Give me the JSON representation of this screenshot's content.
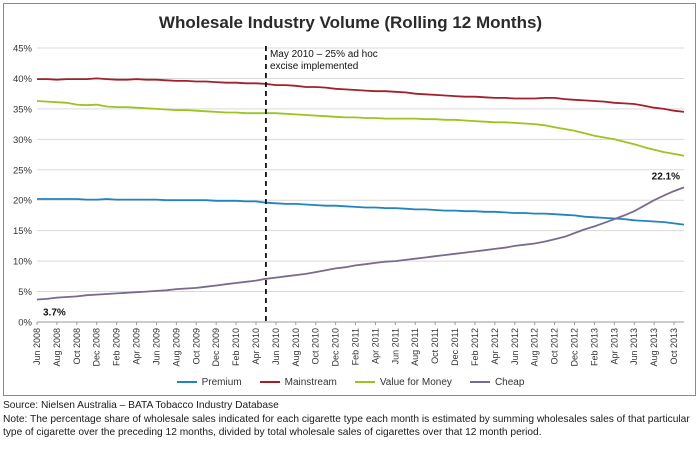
{
  "chart_data": {
    "type": "line",
    "title": "Wholesale Industry Volume (Rolling 12 Months)",
    "xlabel": "",
    "ylabel": "",
    "ylim": [
      0,
      45
    ],
    "y_ticks": [
      "0%",
      "5%",
      "10%",
      "15%",
      "20%",
      "25%",
      "30%",
      "35%",
      "40%",
      "45%"
    ],
    "y_unit": "%",
    "grid": "horizontal",
    "legend_position": "bottom",
    "months": [
      "2008-06",
      "2008-07",
      "2008-08",
      "2008-09",
      "2008-10",
      "2008-11",
      "2008-12",
      "2009-01",
      "2009-02",
      "2009-03",
      "2009-04",
      "2009-05",
      "2009-06",
      "2009-07",
      "2009-08",
      "2009-09",
      "2009-10",
      "2009-11",
      "2009-12",
      "2010-01",
      "2010-02",
      "2010-03",
      "2010-04",
      "2010-05",
      "2010-06",
      "2010-07",
      "2010-08",
      "2010-09",
      "2010-10",
      "2010-11",
      "2010-12",
      "2011-01",
      "2011-02",
      "2011-03",
      "2011-04",
      "2011-05",
      "2011-06",
      "2011-07",
      "2011-08",
      "2011-09",
      "2011-10",
      "2011-11",
      "2011-12",
      "2012-01",
      "2012-02",
      "2012-03",
      "2012-04",
      "2012-05",
      "2012-06",
      "2012-07",
      "2012-08",
      "2012-09",
      "2012-10",
      "2012-11",
      "2012-12",
      "2013-01",
      "2013-02",
      "2013-03",
      "2013-04",
      "2013-05",
      "2013-06",
      "2013-07",
      "2013-08",
      "2013-09",
      "2013-10",
      "2013-11"
    ],
    "x_tick_labels": [
      "Jun 2008",
      "Aug 2008",
      "Oct 2008",
      "Dec 2008",
      "Feb 2009",
      "Apr 2009",
      "Jun 2009",
      "Aug 2009",
      "Oct 2009",
      "Dec 2009",
      "Feb 2010",
      "Apr 2010",
      "Jun 2010",
      "Aug 2010",
      "Oct 2010",
      "Dec 2010",
      "Feb 2011",
      "Apr 2011",
      "Jun 2011",
      "Aug 2011",
      "Oct 2011",
      "Dec 2011",
      "Feb 2012",
      "Apr 2012",
      "Jun 2012",
      "Aug 2012",
      "Oct 2012",
      "Dec 2012",
      "Feb 2013",
      "Apr 2013",
      "Jun 2013",
      "Aug 2013",
      "Oct 2013"
    ],
    "series": [
      {
        "name": "Premium",
        "color": "#1f84bf",
        "values": [
          20.2,
          20.2,
          20.2,
          20.2,
          20.2,
          20.1,
          20.1,
          20.2,
          20.1,
          20.1,
          20.1,
          20.1,
          20.1,
          20.0,
          20.0,
          20.0,
          20.0,
          20.0,
          19.9,
          19.9,
          19.9,
          19.8,
          19.8,
          19.6,
          19.5,
          19.4,
          19.4,
          19.3,
          19.2,
          19.1,
          19.1,
          19.0,
          18.9,
          18.8,
          18.8,
          18.7,
          18.7,
          18.6,
          18.5,
          18.5,
          18.4,
          18.3,
          18.3,
          18.2,
          18.2,
          18.1,
          18.1,
          18.0,
          17.9,
          17.9,
          17.8,
          17.8,
          17.7,
          17.6,
          17.5,
          17.3,
          17.2,
          17.1,
          17.0,
          16.9,
          16.7,
          16.6,
          16.5,
          16.4,
          16.2,
          16.0
        ]
      },
      {
        "name": "Mainstream",
        "color": "#a3202a",
        "values": [
          39.9,
          39.9,
          39.8,
          39.9,
          39.9,
          39.9,
          40.0,
          39.9,
          39.8,
          39.8,
          39.9,
          39.8,
          39.8,
          39.7,
          39.6,
          39.6,
          39.5,
          39.5,
          39.4,
          39.3,
          39.3,
          39.2,
          39.2,
          39.1,
          38.9,
          38.9,
          38.8,
          38.6,
          38.6,
          38.5,
          38.3,
          38.2,
          38.1,
          38.0,
          37.9,
          37.9,
          37.8,
          37.7,
          37.5,
          37.4,
          37.3,
          37.2,
          37.1,
          37.0,
          37.0,
          36.9,
          36.8,
          36.8,
          36.7,
          36.7,
          36.7,
          36.8,
          36.8,
          36.6,
          36.5,
          36.4,
          36.3,
          36.2,
          36.0,
          35.9,
          35.8,
          35.5,
          35.2,
          35.0,
          34.7,
          34.5
        ]
      },
      {
        "name": "Value for Money",
        "color": "#9cc31e",
        "values": [
          36.3,
          36.2,
          36.1,
          36.0,
          35.7,
          35.6,
          35.7,
          35.4,
          35.3,
          35.3,
          35.2,
          35.1,
          35.0,
          34.9,
          34.8,
          34.8,
          34.7,
          34.6,
          34.5,
          34.4,
          34.4,
          34.3,
          34.3,
          34.3,
          34.3,
          34.2,
          34.1,
          34.0,
          33.9,
          33.8,
          33.7,
          33.6,
          33.6,
          33.5,
          33.5,
          33.4,
          33.4,
          33.4,
          33.4,
          33.3,
          33.3,
          33.2,
          33.2,
          33.1,
          33.0,
          32.9,
          32.8,
          32.8,
          32.7,
          32.6,
          32.5,
          32.3,
          32.0,
          31.7,
          31.4,
          31.0,
          30.6,
          30.3,
          30.0,
          29.6,
          29.2,
          28.7,
          28.3,
          27.9,
          27.6,
          27.3
        ]
      },
      {
        "name": "Cheap",
        "color": "#7a6a8f",
        "values": [
          3.7,
          3.8,
          4.0,
          4.1,
          4.2,
          4.4,
          4.5,
          4.6,
          4.7,
          4.8,
          4.9,
          5.0,
          5.1,
          5.2,
          5.4,
          5.5,
          5.6,
          5.8,
          6.0,
          6.2,
          6.4,
          6.6,
          6.8,
          7.1,
          7.3,
          7.5,
          7.7,
          7.9,
          8.2,
          8.5,
          8.8,
          9.0,
          9.3,
          9.5,
          9.7,
          9.9,
          10.0,
          10.2,
          10.4,
          10.6,
          10.8,
          11.0,
          11.2,
          11.4,
          11.6,
          11.8,
          12.0,
          12.2,
          12.5,
          12.7,
          12.9,
          13.2,
          13.6,
          14.0,
          14.6,
          15.2,
          15.7,
          16.3,
          16.9,
          17.5,
          18.2,
          19.1,
          20.0,
          20.8,
          21.5,
          22.1
        ]
      }
    ],
    "annotations": [
      {
        "text_lines": [
          "May 2010 – 25% ad hoc",
          "excise implemented"
        ],
        "x": "2010-05",
        "style": "dashed vertical line"
      },
      {
        "text": "3.7%",
        "x": "2008-06",
        "series": "Cheap"
      },
      {
        "text": "22.1%",
        "x": "2013-11",
        "series": "Cheap"
      }
    ]
  },
  "footnote": {
    "source": "Source: Nielsen Australia – BATA Tobacco Industry Database",
    "note": "Note: The percentage share of wholesale sales indicated for each cigarette type each month is estimated by summing wholesales sales of that particular type of cigarette over the preceding 12 months, divided by total wholesale sales of cigarettes over that 12 month period."
  }
}
